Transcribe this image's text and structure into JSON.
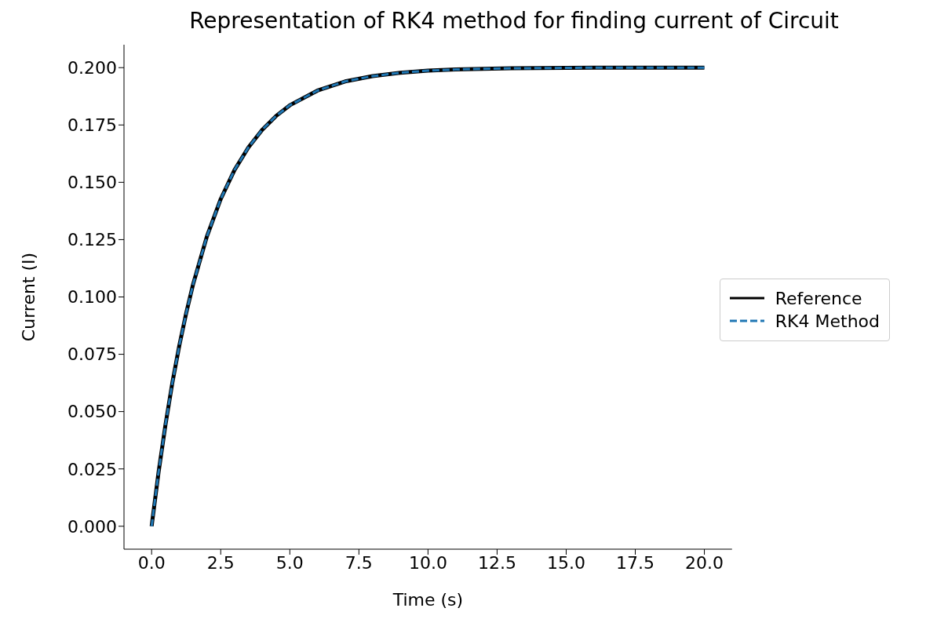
{
  "chart_data": {
    "type": "line",
    "title": "Representation of RK4 method for finding current of Circuit",
    "xlabel": "Time (s)",
    "ylabel": "Current (I)",
    "x": [
      0,
      0.25,
      0.5,
      0.75,
      1,
      1.25,
      1.5,
      2,
      2.5,
      3,
      3.5,
      4,
      4.5,
      5,
      6,
      7,
      8,
      9,
      10,
      11,
      12,
      13,
      14,
      15,
      16,
      17,
      18,
      19,
      20
    ],
    "series": [
      {
        "name": "Reference",
        "color": "#000000",
        "line_style": "solid",
        "values": [
          0,
          0.0235,
          0.0442,
          0.0626,
          0.0787,
          0.0929,
          0.1055,
          0.1264,
          0.1427,
          0.1554,
          0.1652,
          0.1729,
          0.1789,
          0.1836,
          0.19,
          0.194,
          0.1963,
          0.1978,
          0.1987,
          0.1992,
          0.1995,
          0.1997,
          0.1998,
          0.1999,
          0.2,
          0.2,
          0.2,
          0.2,
          0.2
        ]
      },
      {
        "name": "RK4 Method",
        "color": "#1f77b4",
        "line_style": "dashed",
        "values": [
          0,
          0.0235,
          0.0442,
          0.0626,
          0.0787,
          0.0929,
          0.1055,
          0.1264,
          0.1427,
          0.1554,
          0.1652,
          0.1729,
          0.1789,
          0.1836,
          0.19,
          0.194,
          0.1963,
          0.1978,
          0.1987,
          0.1992,
          0.1995,
          0.1997,
          0.1998,
          0.1999,
          0.2,
          0.2,
          0.2,
          0.2,
          0.2
        ]
      }
    ],
    "xlim": [
      -1,
      21
    ],
    "xticks": [
      {
        "value": 0,
        "label": "0.0"
      },
      {
        "value": 2.5,
        "label": "2.5"
      },
      {
        "value": 5,
        "label": "5.0"
      },
      {
        "value": 7.5,
        "label": "7.5"
      },
      {
        "value": 10,
        "label": "10.0"
      },
      {
        "value": 12.5,
        "label": "12.5"
      },
      {
        "value": 15,
        "label": "15.0"
      },
      {
        "value": 17.5,
        "label": "17.5"
      },
      {
        "value": 20,
        "label": "20.0"
      }
    ],
    "ylim": [
      -0.01,
      0.21
    ],
    "yticks": [
      {
        "value": 0,
        "label": "0.000"
      },
      {
        "value": 0.025,
        "label": "0.025"
      },
      {
        "value": 0.05,
        "label": "0.050"
      },
      {
        "value": 0.075,
        "label": "0.075"
      },
      {
        "value": 0.1,
        "label": "0.100"
      },
      {
        "value": 0.125,
        "label": "0.125"
      },
      {
        "value": 0.15,
        "label": "0.150"
      },
      {
        "value": 0.175,
        "label": "0.175"
      },
      {
        "value": 0.2,
        "label": "0.200"
      }
    ],
    "legend": "center right",
    "grid": false
  }
}
